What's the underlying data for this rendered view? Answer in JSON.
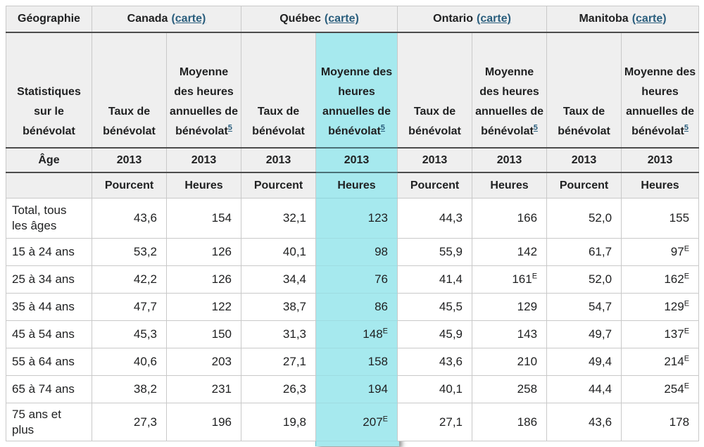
{
  "accent": {
    "highlight_color": "#a6e9ee",
    "link_color": "#2a5e7d",
    "header_bg": "#efefef"
  },
  "table": {
    "geography_label": "Géographie",
    "provinces": [
      {
        "name": "Canada",
        "map_link": "(carte)"
      },
      {
        "name": "Québec",
        "map_link": "(carte)"
      },
      {
        "name": "Ontario",
        "map_link": "(carte)"
      },
      {
        "name": "Manitoba",
        "map_link": "(carte)"
      }
    ],
    "stats_label": "Statistiques sur le bénévolat",
    "col_headers": {
      "rate": "Taux de bénévolat",
      "avg": "Moyenne des heures annuelles de bénévolat",
      "avg_footnote": "5"
    },
    "age_label": "Âge",
    "year": "2013",
    "units": {
      "percent": "Pourcent",
      "hours": "Heures"
    },
    "rows": [
      {
        "label": "Total, tous les âges",
        "values": [
          {
            "v": "43,6"
          },
          {
            "v": "154"
          },
          {
            "v": "32,1"
          },
          {
            "v": "123"
          },
          {
            "v": "44,3"
          },
          {
            "v": "166"
          },
          {
            "v": "52,0"
          },
          {
            "v": "155"
          }
        ]
      },
      {
        "label": "15 à 24 ans",
        "values": [
          {
            "v": "53,2"
          },
          {
            "v": "126"
          },
          {
            "v": "40,1"
          },
          {
            "v": "98"
          },
          {
            "v": "55,9"
          },
          {
            "v": "142"
          },
          {
            "v": "61,7"
          },
          {
            "v": "97",
            "sup": "E"
          }
        ]
      },
      {
        "label": "25 à 34 ans",
        "values": [
          {
            "v": "42,2"
          },
          {
            "v": "126"
          },
          {
            "v": "34,4"
          },
          {
            "v": "76"
          },
          {
            "v": "41,4"
          },
          {
            "v": "161",
            "sup": "E"
          },
          {
            "v": "52,0"
          },
          {
            "v": "162",
            "sup": "E"
          }
        ]
      },
      {
        "label": "35 à 44 ans",
        "values": [
          {
            "v": "47,7"
          },
          {
            "v": "122"
          },
          {
            "v": "38,7"
          },
          {
            "v": "86"
          },
          {
            "v": "45,5"
          },
          {
            "v": "129"
          },
          {
            "v": "54,7"
          },
          {
            "v": "129",
            "sup": "E"
          }
        ]
      },
      {
        "label": "45 à 54 ans",
        "values": [
          {
            "v": "45,3"
          },
          {
            "v": "150"
          },
          {
            "v": "31,3"
          },
          {
            "v": "148",
            "sup": "E"
          },
          {
            "v": "45,9"
          },
          {
            "v": "143"
          },
          {
            "v": "49,7"
          },
          {
            "v": "137",
            "sup": "E"
          }
        ]
      },
      {
        "label": "55 à 64 ans",
        "values": [
          {
            "v": "40,6"
          },
          {
            "v": "203"
          },
          {
            "v": "27,1"
          },
          {
            "v": "158"
          },
          {
            "v": "43,6"
          },
          {
            "v": "210"
          },
          {
            "v": "49,4"
          },
          {
            "v": "214",
            "sup": "E"
          }
        ]
      },
      {
        "label": "65 à 74 ans",
        "values": [
          {
            "v": "38,2"
          },
          {
            "v": "231"
          },
          {
            "v": "26,3"
          },
          {
            "v": "194"
          },
          {
            "v": "40,1"
          },
          {
            "v": "258"
          },
          {
            "v": "44,4"
          },
          {
            "v": "254",
            "sup": "E"
          }
        ]
      },
      {
        "label": "75 ans et plus",
        "values": [
          {
            "v": "27,3"
          },
          {
            "v": "196"
          },
          {
            "v": "19,8"
          },
          {
            "v": "207",
            "sup": "E"
          },
          {
            "v": "27,1"
          },
          {
            "v": "186"
          },
          {
            "v": "43,6"
          },
          {
            "v": "178"
          }
        ]
      }
    ]
  }
}
